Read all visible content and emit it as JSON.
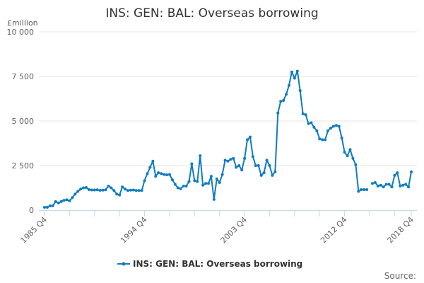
{
  "chart_data": {
    "type": "line",
    "title": "INS: GEN: BAL: Overseas borrowing",
    "ylabel": "£million",
    "xlabel": "",
    "ylim": [
      0,
      10000
    ],
    "yticks": [
      0,
      2500,
      5000,
      7500,
      10000
    ],
    "ytick_labels": [
      "0",
      "2 500",
      "5 000",
      "7 500",
      "10 000"
    ],
    "x_start": "1985 Q4",
    "x_end": "2018 Q4",
    "xtick_labels": [
      {
        "index": 0,
        "label": "1985 Q4"
      },
      {
        "index": 36,
        "label": "1994 Q4"
      },
      {
        "index": 72,
        "label": "2003 Q4"
      },
      {
        "index": 108,
        "label": "2012 Q4"
      },
      {
        "index": 132,
        "label": "2018 Q4"
      }
    ],
    "grid": true,
    "legend_position": "bottom-center",
    "series": [
      {
        "name": "INS: GEN: BAL: Overseas borrowing",
        "color": "#0f7cc0",
        "values": [
          160,
          160,
          240,
          250,
          480,
          400,
          480,
          550,
          580,
          520,
          700,
          900,
          1050,
          1180,
          1250,
          1270,
          1150,
          1130,
          1130,
          1140,
          1110,
          1120,
          1140,
          1350,
          1250,
          1100,
          900,
          850,
          1300,
          1180,
          1100,
          1120,
          1130,
          1100,
          1100,
          1100,
          1650,
          2050,
          2400,
          2750,
          1900,
          2100,
          2050,
          2000,
          1980,
          2000,
          1700,
          1450,
          1250,
          1200,
          1350,
          1350,
          1600,
          2600,
          1650,
          1600,
          3050,
          1400,
          1500,
          1500,
          1900,
          600,
          1750,
          1550,
          2000,
          2800,
          2750,
          2850,
          2900,
          2400,
          2500,
          2250,
          2900,
          3950,
          4100,
          3000,
          2500,
          2500,
          1950,
          2100,
          2800,
          2500,
          1950,
          2150,
          5450,
          6100,
          6150,
          6500,
          7000,
          7750,
          7400,
          7800,
          6700,
          5400,
          5350,
          4850,
          4900,
          4650,
          4450,
          4000,
          3950,
          3950,
          4450,
          4600,
          4700,
          4750,
          4700,
          4050,
          3250,
          3050,
          3400,
          2900,
          2550,
          1050,
          1150,
          1150,
          1150,
          null,
          1500,
          1550,
          1350,
          1400,
          1300,
          1450,
          1450,
          1300,
          1950,
          2100,
          1350,
          1400,
          1450,
          1300,
          2150
        ]
      }
    ],
    "source_label": "Source:"
  }
}
